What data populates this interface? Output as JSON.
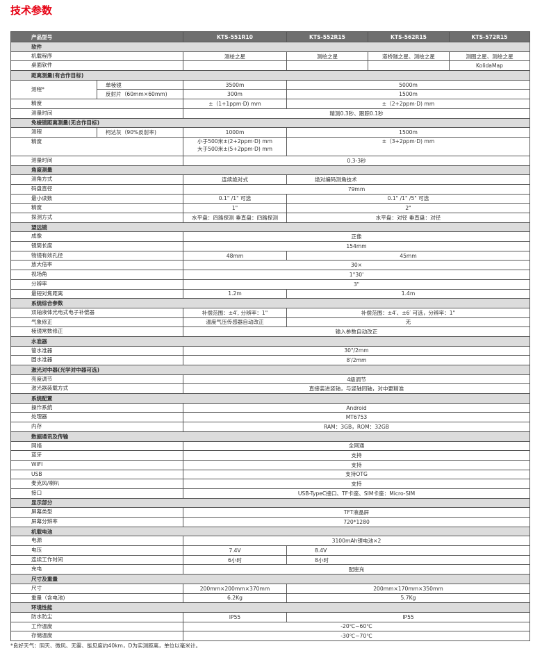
{
  "title": "技术参数",
  "header": {
    "label": "产品型号",
    "models": [
      "KTS-551R10",
      "KTS-552R15",
      "KTS-562R15",
      "KTS-572R15"
    ]
  },
  "sections": [
    {
      "title": "软件",
      "rows": [
        {
          "label": "机载程序",
          "cells": [
            {
              "t": "测绘之星",
              "s": 1
            },
            {
              "t": "测绘之星",
              "s": 1
            },
            {
              "t": "道桥隧之星、测绘之星",
              "s": 1
            },
            {
              "t": "测图之星、测绘之星",
              "s": 1
            }
          ]
        },
        {
          "label": "桌面软件",
          "cells": [
            {
              "t": "",
              "s": 1
            },
            {
              "t": "",
              "s": 1
            },
            {
              "t": "",
              "s": 1
            },
            {
              "t": "KolidaMap",
              "s": 1
            }
          ]
        }
      ]
    },
    {
      "title": "距离测量(有合作目标)",
      "rows": [
        {
          "label": "测程*",
          "rowspan": 2,
          "sub": "单棱镜",
          "cells": [
            {
              "t": "3500m",
              "s": 1
            },
            {
              "t": "5000m",
              "s": 3
            }
          ]
        },
        {
          "sub": "反射片（60mm×60mm)",
          "cells": [
            {
              "t": "300m",
              "s": 1
            },
            {
              "t": "1500m",
              "s": 3
            }
          ]
        },
        {
          "label": "精度",
          "cells": [
            {
              "t": "±（1+1ppm·D) mm",
              "s": 1
            },
            {
              "t": "±（2+2ppm·D) mm",
              "s": 3
            }
          ]
        },
        {
          "label": "测量时间",
          "cells": [
            {
              "t": "精测0.3秒、跟踪0.1秒",
              "s": 4
            }
          ]
        }
      ]
    },
    {
      "title": "免棱镜距离测量(无合作目标)",
      "rows": [
        {
          "label": "测程",
          "sub": "柯达灰（90%反射率)",
          "cells": [
            {
              "t": "1000m",
              "s": 1
            },
            {
              "t": "1500m",
              "s": 3
            }
          ]
        },
        {
          "label": "精度",
          "tall": true,
          "cells": [
            {
              "t": "小于500米±(2+2ppm·D) mm\n大于500米±(5+2ppm·D) mm",
              "s": 1
            },
            {
              "t": "±（3+2ppm·D) mm",
              "s": 3
            }
          ]
        },
        {
          "label": "测量时间",
          "cells": [
            {
              "t": "0.3-3秒",
              "s": 4
            }
          ]
        }
      ]
    },
    {
      "title": "角度测量",
      "rows": [
        {
          "label": "测角方式",
          "cells": [
            {
              "t": "连续绝对式",
              "s": 1
            },
            {
              "t": "绝对编码测角技术",
              "s": 3
            }
          ]
        },
        {
          "label": "码盘直径",
          "cells": [
            {
              "t": "79mm",
              "s": 4
            }
          ]
        },
        {
          "label": "最小读数",
          "cells": [
            {
              "t": "0.1\" /1\"  可选",
              "s": 1
            },
            {
              "t": "0.1\" /1\" /5\" 可选",
              "s": 3
            }
          ]
        },
        {
          "label": "精度",
          "cells": [
            {
              "t": "1\"",
              "s": 1
            },
            {
              "t": "2\"",
              "s": 3
            }
          ]
        },
        {
          "label": "探测方式",
          "cells": [
            {
              "t": "水平盘：四路探测  垂直盘：四路探测",
              "s": 1
            },
            {
              "t": "水平盘：对径    垂直盘：对径",
              "s": 3
            }
          ]
        }
      ]
    },
    {
      "title": "望远镜",
      "rows": [
        {
          "label": "成像",
          "cells": [
            {
              "t": "正像",
              "s": 4
            }
          ]
        },
        {
          "label": "镜筒长度",
          "cells": [
            {
              "t": "154mm",
              "s": 4
            }
          ]
        },
        {
          "label": "物镜有效孔径",
          "cells": [
            {
              "t": "48mm",
              "s": 1
            },
            {
              "t": "45mm",
              "s": 3
            }
          ]
        },
        {
          "label": "放大倍率",
          "cells": [
            {
              "t": "30×",
              "s": 4
            }
          ]
        },
        {
          "label": "视场角",
          "cells": [
            {
              "t": "1°30'",
              "s": 4
            }
          ]
        },
        {
          "label": "分辨率",
          "cells": [
            {
              "t": "3\"",
              "s": 4
            }
          ]
        },
        {
          "label": "最短对焦距离",
          "cells": [
            {
              "t": "1.2m",
              "s": 1
            },
            {
              "t": "1.4m",
              "s": 3
            }
          ]
        }
      ]
    },
    {
      "title": "系统综合参数",
      "rows": [
        {
          "label": "双轴液体光电式电子补偿器",
          "cells": [
            {
              "t": "补偿范围：±4′, 分辨率：1\"",
              "s": 1
            },
            {
              "t": "补偿范围：±4′、±6′ 可选，分辨率：1\"",
              "s": 3
            }
          ]
        },
        {
          "label": "气象修正",
          "cells": [
            {
              "t": "温度气压传感器自动改正",
              "s": 1
            },
            {
              "t": "无",
              "s": 3
            }
          ]
        },
        {
          "label": "棱镜常数修正",
          "cells": [
            {
              "t": "输入参数自动改正",
              "s": 4
            }
          ]
        }
      ]
    },
    {
      "title": "水准器",
      "rows": [
        {
          "label": "管水准器",
          "cells": [
            {
              "t": "30\"/2mm",
              "s": 4
            }
          ]
        },
        {
          "label": "圆水准器",
          "cells": [
            {
              "t": "8′/2mm",
              "s": 4
            }
          ]
        }
      ]
    },
    {
      "title": "激光对中器(光学对中器可选)",
      "rows": [
        {
          "label": "亮度调节",
          "cells": [
            {
              "t": "4级调节",
              "s": 4
            }
          ]
        },
        {
          "label": "激光器装载方式",
          "cells": [
            {
              "t": "直接装进竖轴，与竖轴同轴，对中更精准",
              "s": 4
            }
          ]
        }
      ]
    },
    {
      "title": "系统配置",
      "rows": [
        {
          "label": "操作系统",
          "cells": [
            {
              "t": "Android",
              "s": 4
            }
          ]
        },
        {
          "label": "处理器",
          "cells": [
            {
              "t": "MT6753",
              "s": 4
            }
          ]
        },
        {
          "label": "内存",
          "cells": [
            {
              "t": "RAM：3GB，ROM：32GB",
              "s": 4
            }
          ]
        }
      ]
    },
    {
      "title": "数据通讯及传输",
      "rows": [
        {
          "label": "网络",
          "cells": [
            {
              "t": "全网通",
              "s": 4
            }
          ]
        },
        {
          "label": "蓝牙",
          "cells": [
            {
              "t": "支持",
              "s": 4
            }
          ]
        },
        {
          "label": "WIFI",
          "cells": [
            {
              "t": "支持",
              "s": 4
            }
          ]
        },
        {
          "label": "USB",
          "cells": [
            {
              "t": "支持OTG",
              "s": 4
            }
          ]
        },
        {
          "label": "麦克风/喇叭",
          "cells": [
            {
              "t": "支持",
              "s": 4
            }
          ]
        },
        {
          "label": "接口",
          "cells": [
            {
              "t": "USB-TypeC接口、TF卡座、SIM卡座：Micro-SIM",
              "s": 4
            }
          ]
        }
      ]
    },
    {
      "title": "显示部分",
      "rows": [
        {
          "label": "屏幕类型",
          "cells": [
            {
              "t": "TFT液晶屏",
              "s": 4
            }
          ]
        },
        {
          "label": "屏幕分辨率",
          "cells": [
            {
              "t": "720*1280",
              "s": 4
            }
          ]
        }
      ]
    },
    {
      "title": "机载电池",
      "rows": [
        {
          "label": "电源",
          "cells": [
            {
              "t": "3100mAh锂电池×2",
              "s": 4
            }
          ]
        },
        {
          "label": "电压",
          "cells": [
            {
              "t": "7.4V",
              "s": 1
            },
            {
              "t": "8.4V",
              "s": 3
            }
          ]
        },
        {
          "label": "连续工作时间",
          "cells": [
            {
              "t": "6小时",
              "s": 1
            },
            {
              "t": "8小时",
              "s": 3
            }
          ]
        },
        {
          "label": "充电",
          "cells": [
            {
              "t": "配座充",
              "s": 4
            }
          ]
        }
      ]
    },
    {
      "title": "尺寸及重量",
      "rows": [
        {
          "label": "尺寸",
          "cells": [
            {
              "t": "200mm×200mm×370mm",
              "s": 1
            },
            {
              "t": "200mm×170mm×350mm",
              "s": 3
            }
          ]
        },
        {
          "label": "重量（含电池)",
          "cells": [
            {
              "t": "6.2Kg",
              "s": 1
            },
            {
              "t": "5.7Kg",
              "s": 3
            }
          ]
        }
      ]
    },
    {
      "title": "环境性能",
      "rows": [
        {
          "label": "防水防尘",
          "cells": [
            {
              "t": "IP55",
              "s": 1
            },
            {
              "t": "IP55",
              "s": 3
            }
          ]
        },
        {
          "label": "工作温度",
          "cells": [
            {
              "t": "-20℃~60℃",
              "s": 4
            }
          ]
        },
        {
          "label": "存储温度",
          "cells": [
            {
              "t": "-30℃~70℃",
              "s": 4
            }
          ]
        }
      ]
    }
  ],
  "footnote": "*良好天气：阴天、微风、无雾、能见度约40km，D为实测距离，单位以毫米计。"
}
